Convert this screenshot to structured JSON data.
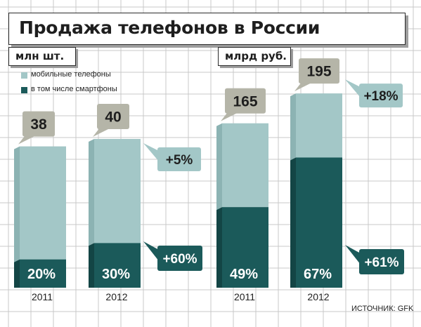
{
  "title": "Продажа телефонов в России",
  "units": {
    "left": "млн шт.",
    "right": "млрд руб."
  },
  "legend": [
    {
      "label": "мобильные телефоны",
      "color": "#a3c7c7"
    },
    {
      "label": "в том числе смартфоны",
      "color": "#1b5a5a"
    }
  ],
  "source": "ИСТОЧНИК: GFK",
  "chart_data": [
    {
      "type": "bar",
      "unit": "млн шт.",
      "categories": [
        "2011",
        "2012"
      ],
      "series": [
        {
          "name": "мобильные телефоны",
          "values": [
            38,
            40
          ],
          "labels": [
            "38",
            "40"
          ]
        },
        {
          "name": "в том числе смартфоны",
          "share_percent": [
            20,
            30
          ],
          "labels": [
            "20%",
            "30%"
          ]
        }
      ],
      "growth": {
        "total": "+5%",
        "smartphones": "+60%"
      }
    },
    {
      "type": "bar",
      "unit": "млрд руб.",
      "categories": [
        "2011",
        "2012"
      ],
      "series": [
        {
          "name": "мобильные телефоны",
          "values": [
            165,
            195
          ],
          "labels": [
            "165",
            "195"
          ]
        },
        {
          "name": "в том числе смартфоны",
          "share_percent": [
            49,
            67
          ],
          "labels": [
            "49%",
            "67%"
          ]
        }
      ],
      "growth": {
        "total": "+18%",
        "smartphones": "+61%"
      }
    }
  ],
  "colors": {
    "light": "#a3c7c7",
    "light_side": "#8cb3b3",
    "dark": "#1b5a5a",
    "dark_side": "#134545",
    "callout": "#b5b5a8",
    "grid": "#c8c8c8"
  }
}
